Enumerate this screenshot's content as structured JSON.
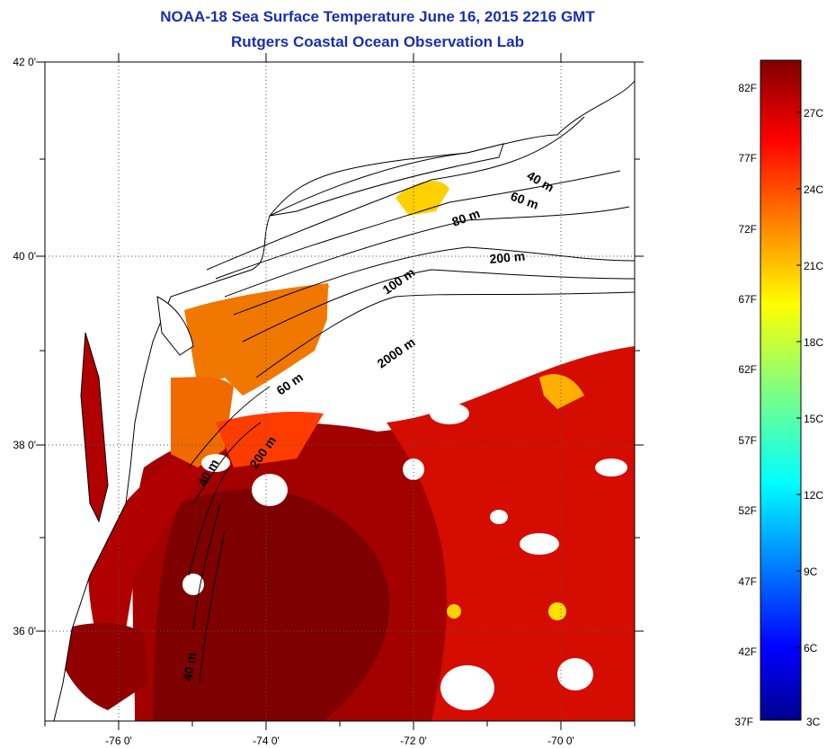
{
  "header": {
    "title": "NOAA-18 Sea Surface Temperature June 16, 2015 2216 GMT",
    "subtitle": "Rutgers Coastal Ocean Observation Lab"
  },
  "map": {
    "lat_ticks": [
      "42 0'",
      "40 0'",
      "38 0'",
      "36 0'"
    ],
    "lon_ticks": [
      "-76 0'",
      "-74 0'",
      "-72 0'",
      "-70 0'"
    ],
    "lat_range": [
      35,
      42
    ],
    "lon_range": [
      -77,
      -69
    ],
    "contour_labels": [
      "40 m",
      "60 m",
      "80 m",
      "200 m",
      "100 m",
      "2000 m",
      "60 m",
      "200 m",
      "40 m",
      "40 m"
    ]
  },
  "colorbar": {
    "fahrenheit_labels": [
      "82F",
      "77F",
      "72F",
      "67F",
      "62F",
      "57F",
      "52F",
      "47F",
      "42F",
      "37F"
    ],
    "celsius_labels": [
      "27C",
      "24C",
      "21C",
      "18C",
      "15C",
      "12C",
      "9C",
      "6C",
      "3C"
    ],
    "range_f": [
      37,
      84
    ],
    "colormap": "jet"
  },
  "colors": {
    "title": "#1a2fb0",
    "land": "#ffffff",
    "coast": "#000000"
  }
}
